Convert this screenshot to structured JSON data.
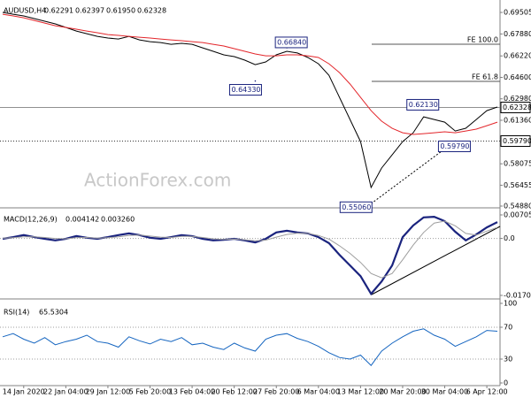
{
  "chart_data": [
    {
      "type": "line",
      "title": "AUDUSD,H4",
      "quote": [
        "0.62291",
        "0.62397",
        "0.61950",
        "0.62328"
      ],
      "categories": [
        null,
        null,
        "14 Jan 2020",
        null,
        null,
        null,
        "22 Jan 04:00",
        null,
        null,
        null,
        "29 Jan 12:00",
        null,
        null,
        null,
        "5 Feb 20:00",
        null,
        null,
        null,
        "13 Feb 04:00",
        null,
        null,
        null,
        "20 Feb 12:00",
        null,
        null,
        null,
        "27 Feb 20:00",
        null,
        null,
        null,
        "6 Mar 04:00",
        null,
        null,
        null,
        "13 Mar 12:00",
        null,
        null,
        null,
        "20 Mar 20:00",
        null,
        null,
        null,
        "30 Mar 04:00",
        null,
        null,
        null,
        "6 Apr 12:00",
        null
      ],
      "series": [
        {
          "color": "#000000",
          "values": [
            0.6951,
            0.6937,
            0.6924,
            0.6904,
            0.6884,
            0.6864,
            0.6837,
            0.681,
            0.679,
            0.677,
            0.6757,
            0.675,
            0.677,
            0.6743,
            0.673,
            0.6723,
            0.671,
            0.6717,
            0.671,
            0.6683,
            0.6657,
            0.663,
            0.6617,
            0.659,
            0.6556,
            0.6577,
            0.663,
            0.6657,
            0.6644,
            0.661,
            0.6563,
            0.6476,
            0.6309,
            0.6142,
            0.5975,
            0.5628,
            0.5775,
            0.5875,
            0.5975,
            0.6042,
            0.6162,
            0.6142,
            0.6122,
            0.6055,
            0.6076,
            0.6142,
            0.6209,
            0.6236
          ]
        },
        {
          "color": "#e3262b",
          "values": [
            0.6937,
            0.6924,
            0.691,
            0.689,
            0.687,
            0.685,
            0.6837,
            0.6824,
            0.681,
            0.6797,
            0.6783,
            0.6777,
            0.677,
            0.6763,
            0.6757,
            0.675,
            0.6743,
            0.6737,
            0.673,
            0.6723,
            0.671,
            0.6697,
            0.6677,
            0.6657,
            0.6637,
            0.6623,
            0.6623,
            0.663,
            0.663,
            0.6623,
            0.661,
            0.6563,
            0.6496,
            0.641,
            0.6309,
            0.6209,
            0.6129,
            0.6075,
            0.6042,
            0.6029,
            0.6035,
            0.6042,
            0.6049,
            0.6042,
            0.6055,
            0.6069,
            0.6095,
            0.6122
          ]
        }
      ],
      "ylim": [
        0.5488,
        0.7031
      ],
      "yticks": [
        0.69505,
        {
          "value": 0.6788,
          "label": "0.67880"
        },
        {
          "value": 0.6622,
          "label": "0.66220"
        },
        {
          "value": 0.646,
          "label": "0.64600"
        },
        {
          "value": 0.6298,
          "label": "0.62980"
        },
        {
          "value": 0.6136,
          "label": "0.61360"
        },
        0.58075,
        0.56455,
        {
          "value": 0.5488,
          "label": "0.54880"
        }
      ],
      "price_tags": [
        {
          "value": 0.62328,
          "label": "0.62328"
        },
        {
          "value": 0.5979,
          "label": "0.59790"
        }
      ],
      "annotations": [
        {
          "index": 27,
          "value": 0.6684,
          "label": "0.66840"
        },
        {
          "index": 24,
          "value": 0.6433,
          "label": "0.64330"
        },
        {
          "index": 40,
          "value": 0.6213,
          "label": "0.62130"
        },
        {
          "index": 43,
          "value": 0.5979,
          "label": "0.59790"
        },
        {
          "index": 35,
          "value": 0.5506,
          "label": "0.55060"
        }
      ],
      "fe_levels": [
        {
          "value": 0.671,
          "label": "FE 100.0"
        },
        {
          "value": 0.643,
          "label": "FE 61.8"
        }
      ],
      "watermark": "ActionForex.com"
    },
    {
      "type": "line",
      "title": "MACD(12,26,9)",
      "quote": [
        "0.004142",
        "0.003260"
      ],
      "series": [
        {
          "color": "#1a237e",
          "values": [
            -0.0001,
            0.0004,
            0.001,
            0.0004,
            -0.0001,
            -0.0006,
            -0.0001,
            0.0007,
            0.0002,
            -0.0001,
            0.0004,
            0.001,
            0.0015,
            0.001,
            0.0002,
            -0.0001,
            0.0004,
            0.001,
            0.0007,
            -0.0001,
            -0.0006,
            -0.0004,
            -0.0001,
            -0.0006,
            -0.0012,
            -0.0001,
            0.0018,
            0.0023,
            0.0018,
            0.0015,
            0.0004,
            -0.0014,
            -0.0049,
            -0.0081,
            -0.0113,
            -0.0166,
            -0.0129,
            -0.0081,
            0.0004,
            0.0039,
            0.0063,
            0.0065,
            0.0052,
            0.002,
            -0.0006,
            0.0012,
            0.0033,
            0.0049
          ]
        },
        {
          "color": "#9e9e9e",
          "values": [
            0.0001,
            0.0002,
            0.0005,
            0.0005,
            0.0003,
            0,
            -0.0001,
            0.0002,
            0.0003,
            0.0001,
            0.0002,
            0.0005,
            0.0009,
            0.001,
            0.0007,
            0.0004,
            0.0003,
            0.0006,
            0.0006,
            0.0003,
            -0.0001,
            -0.0003,
            -0.0002,
            -0.0004,
            -0.0007,
            -0.0005,
            0.0004,
            0.0012,
            0.0016,
            0.0015,
            0.0009,
            -0.0002,
            -0.0022,
            -0.0045,
            -0.0072,
            -0.0105,
            -0.0118,
            -0.0105,
            -0.0064,
            -0.002,
            0.0018,
            0.0046,
            0.0052,
            0.0038,
            0.0015,
            0.001,
            0.0022,
            0.0033
          ]
        }
      ],
      "ylim": [
        -0.01815,
        0.00838
      ],
      "yticks": [
        0.007058,
        {
          "value": 0,
          "label": "0.0"
        },
        -0.01709
      ]
    },
    {
      "type": "line",
      "title": "RSI(14)",
      "quote": [
        "65.5304"
      ],
      "series": [
        {
          "color": "#1565c0",
          "values": [
            58,
            62,
            55,
            50,
            57,
            48,
            52,
            55,
            60,
            52,
            50,
            45,
            58,
            53,
            49,
            55,
            52,
            57,
            48,
            50,
            45,
            42,
            50,
            44,
            40,
            55,
            60,
            62,
            56,
            52,
            46,
            38,
            32,
            30,
            35,
            22,
            40,
            50,
            58,
            65,
            68,
            60,
            55,
            46,
            52,
            58,
            66,
            65
          ]
        }
      ],
      "ylim": [
        0,
        100
      ],
      "yticks": [
        100,
        70,
        30,
        0
      ]
    }
  ]
}
